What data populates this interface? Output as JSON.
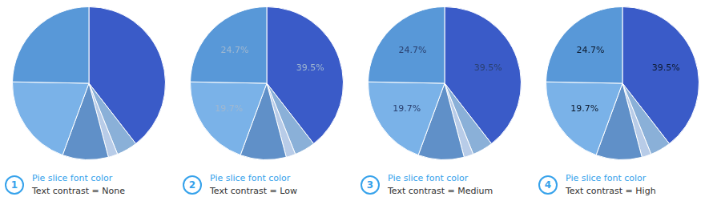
{
  "chart_data": [
    {
      "type": "pie",
      "title": "Pie slice font color",
      "subtitle": "Text contrast = None",
      "annotations": [
        "1"
      ],
      "values": [
        39.5,
        4.4,
        2.0,
        9.7,
        19.7,
        24.7
      ],
      "colors": [
        "#3a5bc8",
        "#8ab0d8",
        "#b8cce8",
        "#6090c8",
        "#7ab2e8",
        "#5898d8"
      ],
      "data_labels": false,
      "legend": false
    },
    {
      "type": "pie",
      "title": "Pie slice font color",
      "subtitle": "Text contrast = Low",
      "annotations": [
        "2"
      ],
      "values": [
        39.5,
        4.4,
        2.0,
        9.7,
        19.7,
        24.7
      ],
      "value_labels": [
        "39.5%",
        null,
        null,
        null,
        "19.7%",
        "24.7%"
      ],
      "colors": [
        "#3a5bc8",
        "#8ab0d8",
        "#b8cce8",
        "#6090c8",
        "#7ab2e8",
        "#5898d8"
      ],
      "data_labels": true,
      "color": "#a0b8d0",
      "legend": false
    },
    {
      "type": "pie",
      "title": "Pie slice font color",
      "subtitle": "Text contrast = Medium",
      "annotations": [
        "3"
      ],
      "values": [
        39.5,
        4.4,
        2.0,
        9.7,
        19.7,
        24.7
      ],
      "value_labels": [
        "39.5%",
        null,
        null,
        null,
        "19.7%",
        "24.7%"
      ],
      "colors": [
        "#3a5bc8",
        "#8ab0d8",
        "#b8cce8",
        "#6090c8",
        "#7ab2e8",
        "#5898d8"
      ],
      "data_labels": true,
      "color": "#2a4070",
      "legend": false
    },
    {
      "type": "pie",
      "title": "Pie slice font color",
      "subtitle": "Text contrast = High",
      "annotations": [
        "4"
      ],
      "values": [
        39.5,
        4.4,
        2.0,
        9.7,
        19.7,
        24.7
      ],
      "value_labels": [
        "39.5%",
        null,
        null,
        null,
        "19.7%",
        "24.7%"
      ],
      "colors": [
        "#3a5bc8",
        "#8ab0d8",
        "#b8cce8",
        "#6090c8",
        "#7ab2e8",
        "#5898d8"
      ],
      "data_labels": true,
      "color": "#0d1a2e",
      "legend": false
    }
  ]
}
